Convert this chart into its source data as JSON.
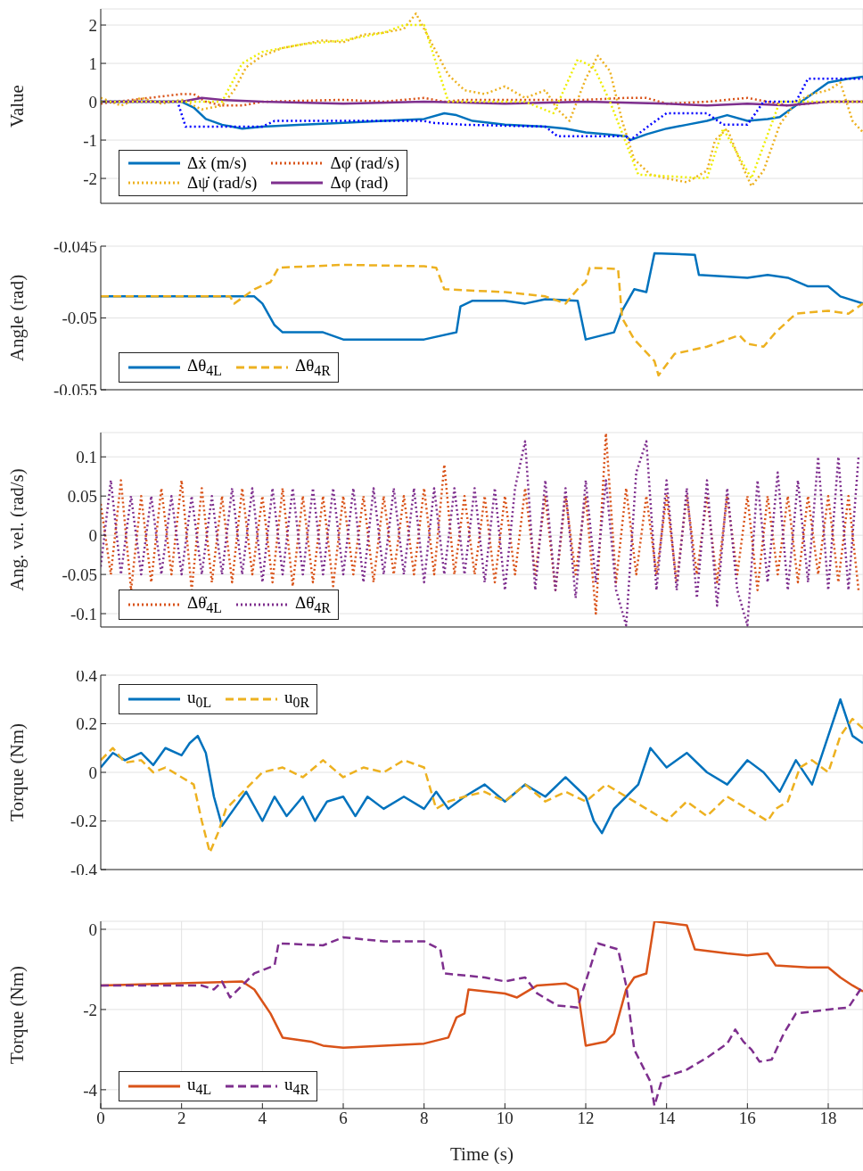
{
  "chart_data": [
    {
      "type": "line",
      "ylabel": "Value",
      "xlim": [
        0,
        18.86
      ],
      "xticks": [
        0,
        2,
        4,
        6,
        8,
        10,
        12,
        14,
        16,
        18
      ],
      "ylim": [
        -2.65,
        2.42
      ],
      "yticks": [
        -2,
        -1,
        0,
        1,
        2
      ],
      "grid": true,
      "legend": "bottom left",
      "tick_labels": "y",
      "series": [
        {
          "name": "Δẋ (m/s)",
          "color": "#0072bd",
          "line_style": "solid",
          "x": [
            0,
            1,
            2,
            2.3,
            2.6,
            3,
            3.5,
            4,
            5,
            6,
            7,
            8,
            8.5,
            8.8,
            9.2,
            10,
            11,
            11.5,
            12,
            12.5,
            13,
            13.1,
            13.5,
            14,
            14.5,
            15,
            15.5,
            16,
            16.5,
            16.8,
            17.2,
            17.6,
            18,
            18.5,
            18.86
          ],
          "values": [
            0,
            0,
            0,
            -0.15,
            -0.45,
            -0.6,
            -0.7,
            -0.65,
            -0.6,
            -0.55,
            -0.5,
            -0.45,
            -0.3,
            -0.35,
            -0.5,
            -0.6,
            -0.65,
            -0.7,
            -0.8,
            -0.85,
            -0.9,
            -1.0,
            -0.85,
            -0.7,
            -0.6,
            -0.5,
            -0.35,
            -0.5,
            -0.45,
            -0.4,
            -0.1,
            0.2,
            0.5,
            0.6,
            0.65
          ]
        },
        {
          "name": "Δφ̇ (rad/s)",
          "color": "#d95319",
          "line_style": "dotted",
          "x": [
            0,
            2,
            2.3,
            2.6,
            3,
            3.5,
            4,
            6,
            7,
            8,
            8.5,
            9,
            10,
            11,
            12,
            13,
            13.5,
            14,
            15,
            16,
            16.5,
            17,
            18,
            18.86
          ],
          "values": [
            -0.05,
            0.2,
            0.2,
            0,
            -0.1,
            -0.1,
            0,
            0.05,
            0,
            0.1,
            0,
            0.05,
            0.05,
            0.05,
            0.05,
            0.1,
            0.1,
            -0.05,
            0,
            0.1,
            0,
            -0.1,
            0,
            0
          ]
        },
        {
          "name": "Δψ̇ (rad/s)",
          "color": "#edb120",
          "line_style": "dotted",
          "x": [
            0,
            0.5,
            1,
            1.5,
            2,
            2.5,
            3,
            3.3,
            3.6,
            4,
            4.5,
            5,
            5.5,
            6,
            6.5,
            7,
            7.5,
            7.8,
            8,
            8.3,
            8.6,
            9,
            9.5,
            10,
            10.5,
            11,
            11.3,
            11.6,
            12,
            12.3,
            12.6,
            12.9,
            13.2,
            13.6,
            14,
            14.5,
            15,
            15.2,
            15.5,
            15.8,
            16.1,
            16.4,
            16.8,
            17.2,
            17.6,
            18,
            18.3,
            18.6,
            18.86
          ],
          "values": [
            0.1,
            -0.1,
            0.1,
            -0.05,
            0.05,
            -0.2,
            -0.1,
            0.3,
            0.9,
            1.2,
            1.4,
            1.5,
            1.6,
            1.55,
            1.75,
            1.8,
            1.9,
            2.3,
            1.9,
            1.3,
            0.7,
            0.3,
            0.2,
            0.4,
            0.1,
            0.3,
            -0.2,
            -0.5,
            0.6,
            1.2,
            0.8,
            -0.5,
            -1.5,
            -1.9,
            -2.0,
            -2.1,
            -1.8,
            -1.0,
            -0.7,
            -1.5,
            -2.2,
            -1.8,
            -0.6,
            0.0,
            0.2,
            0.3,
            0.5,
            -0.5,
            -0.8
          ]
        },
        {
          "name": "Δφ (rad)",
          "color": "#7e2f8e",
          "line_style": "solid",
          "x": [
            0,
            2,
            2.5,
            3,
            4,
            6,
            8,
            10,
            12,
            14,
            15,
            16,
            17,
            18,
            18.86
          ],
          "values": [
            0,
            0,
            0.1,
            0.05,
            0,
            -0.05,
            0,
            -0.05,
            0,
            -0.05,
            -0.1,
            -0.05,
            -0.1,
            0,
            0
          ]
        },
        {
          "color": "#0000ff",
          "line_style": "dotted",
          "x": [
            0,
            1.9,
            2.1,
            4,
            4.3,
            8,
            8.2,
            9,
            11,
            11.3,
            13,
            13.1,
            13.6,
            14,
            15,
            15.4,
            16,
            16.4,
            17.2,
            17.5,
            18.86
          ],
          "values": [
            0,
            0,
            -0.65,
            -0.65,
            -0.5,
            -0.5,
            -0.55,
            -0.6,
            -0.65,
            -0.9,
            -0.9,
            -1.0,
            -0.6,
            -0.3,
            -0.3,
            -0.6,
            -0.6,
            0,
            0,
            0.6,
            0.6
          ]
        },
        {
          "color": "#eeee00",
          "line_style": "dotted",
          "x": [
            0,
            3,
            3.5,
            4,
            5,
            6,
            7,
            7.5,
            8,
            8.3,
            8.6,
            10.5,
            11.2,
            11.8,
            12.2,
            12.6,
            13.3,
            15,
            15.4,
            16.1,
            16.8,
            18.86
          ],
          "values": [
            0,
            0,
            1.0,
            1.3,
            1.5,
            1.6,
            1.8,
            2.0,
            2.0,
            1.0,
            0,
            0,
            -0.3,
            1.1,
            0.9,
            0,
            -1.9,
            -2.0,
            -0.7,
            -2.0,
            0,
            0
          ]
        }
      ]
    },
    {
      "type": "line",
      "ylabel": "Angle (rad)",
      "xlim": [
        0,
        18.86
      ],
      "xticks": [
        0,
        2,
        4,
        6,
        8,
        10,
        12,
        14,
        16,
        18
      ],
      "ylim": [
        -0.055,
        -0.045
      ],
      "yticks": [
        -0.055,
        -0.05,
        -0.045
      ],
      "grid": true,
      "legend": "bottom left",
      "tick_labels": "y",
      "series": [
        {
          "name": "Δθ$_{4L}$",
          "color": "#0072bd",
          "line_style": "solid",
          "x": [
            0,
            3.8,
            4,
            4.3,
            4.5,
            5.5,
            6,
            8,
            8.8,
            8.9,
            9.2,
            10,
            10.5,
            11,
            11.8,
            12,
            12.7,
            12.9,
            13.2,
            13.5,
            13.7,
            14.7,
            14.8,
            16,
            16.5,
            17,
            17.5,
            18,
            18.3,
            18.86
          ],
          "values": [
            -0.0485,
            -0.0485,
            -0.049,
            -0.0505,
            -0.051,
            -0.051,
            -0.0515,
            -0.0515,
            -0.051,
            -0.0492,
            -0.0488,
            -0.0488,
            -0.049,
            -0.0487,
            -0.0488,
            -0.0515,
            -0.051,
            -0.0495,
            -0.048,
            -0.0482,
            -0.0455,
            -0.0456,
            -0.047,
            -0.0472,
            -0.047,
            -0.0472,
            -0.0478,
            -0.0478,
            -0.0485,
            -0.049
          ]
        },
        {
          "name": "Δθ$_{4R}$",
          "color": "#edb120",
          "line_style": "dashed",
          "x": [
            0,
            3.2,
            3.3,
            3.8,
            4.2,
            4.4,
            6,
            8,
            8.3,
            8.5,
            10,
            11,
            11.5,
            11.8,
            12,
            12.1,
            12.8,
            12.9,
            13.2,
            13.7,
            13.8,
            14.2,
            15,
            15.8,
            16,
            16.4,
            16.7,
            17.2,
            18,
            18.5,
            18.86
          ],
          "values": [
            -0.0485,
            -0.0485,
            -0.049,
            -0.048,
            -0.0475,
            -0.0465,
            -0.0463,
            -0.0464,
            -0.0465,
            -0.048,
            -0.0482,
            -0.0485,
            -0.049,
            -0.048,
            -0.0475,
            -0.0465,
            -0.0466,
            -0.05,
            -0.0515,
            -0.053,
            -0.054,
            -0.0525,
            -0.052,
            -0.0512,
            -0.0518,
            -0.052,
            -0.051,
            -0.0497,
            -0.0495,
            -0.0497,
            -0.049
          ]
        }
      ]
    },
    {
      "type": "line",
      "ylabel": "Ang. vel. (rad/s)",
      "xlim": [
        0,
        18.86
      ],
      "xticks": [
        0,
        2,
        4,
        6,
        8,
        10,
        12,
        14,
        16,
        18
      ],
      "ylim": [
        -0.117,
        0.131
      ],
      "yticks": [
        -0.1,
        -0.05,
        0,
        0.05,
        0.1
      ],
      "grid": true,
      "legend": "bottom left",
      "tick_labels": "y",
      "x": [
        0,
        0.25,
        0.5,
        0.75,
        1,
        1.25,
        1.5,
        1.75,
        2,
        2.25,
        2.5,
        2.75,
        3,
        3.25,
        3.5,
        3.75,
        4,
        4.25,
        4.5,
        4.75,
        5,
        5.25,
        5.5,
        5.75,
        6,
        6.25,
        6.5,
        6.75,
        7,
        7.25,
        7.5,
        7.75,
        8,
        8.25,
        8.5,
        8.75,
        9,
        9.25,
        9.5,
        9.75,
        10,
        10.25,
        10.5,
        10.75,
        11,
        11.25,
        11.5,
        11.75,
        12,
        12.25,
        12.5,
        12.75,
        13,
        13.25,
        13.5,
        13.75,
        14,
        14.25,
        14.5,
        14.75,
        15,
        15.25,
        15.5,
        15.75,
        16,
        16.25,
        16.5,
        16.75,
        17,
        17.25,
        17.5,
        17.75,
        18,
        18.25,
        18.5,
        18.75
      ],
      "series": [
        {
          "name": "Δθ̇$_{4L}$",
          "color": "#d95319",
          "line_style": "dotted",
          "values": [
            0.04,
            -0.05,
            0.07,
            -0.07,
            0.05,
            -0.06,
            0.06,
            -0.05,
            0.07,
            -0.07,
            0.06,
            -0.06,
            0.05,
            -0.06,
            0.06,
            -0.05,
            0.05,
            -0.06,
            0.06,
            -0.065,
            0.05,
            -0.06,
            0.05,
            -0.065,
            0.05,
            -0.05,
            0.05,
            -0.06,
            0.05,
            -0.05,
            0.05,
            -0.05,
            0.06,
            -0.05,
            0.09,
            -0.05,
            0.05,
            -0.05,
            0.05,
            -0.06,
            0.05,
            -0.05,
            0.06,
            -0.05,
            0.05,
            -0.07,
            0.05,
            -0.05,
            0.05,
            -0.1,
            0.13,
            -0.06,
            0.06,
            -0.05,
            0.05,
            -0.05,
            0.05,
            -0.06,
            0.05,
            -0.05,
            0.05,
            -0.06,
            0.05,
            -0.05,
            0.05,
            -0.07,
            0.05,
            -0.05,
            0.05,
            -0.06,
            0.05,
            -0.05,
            0.05,
            -0.06,
            0.05,
            -0.07
          ]
        },
        {
          "name": "Δθ̇$_{4R}$",
          "color": "#7e2f8e",
          "line_style": "dotted",
          "values": [
            -0.04,
            0.07,
            -0.05,
            0.05,
            -0.05,
            0.05,
            -0.05,
            0.05,
            -0.05,
            0.05,
            -0.05,
            0.05,
            -0.05,
            0.06,
            -0.05,
            0.06,
            -0.06,
            0.06,
            -0.05,
            0.06,
            -0.05,
            0.06,
            -0.05,
            0.06,
            -0.05,
            0.06,
            -0.06,
            0.06,
            -0.05,
            0.06,
            -0.05,
            0.06,
            -0.06,
            0.06,
            -0.05,
            0.06,
            -0.05,
            0.06,
            -0.06,
            0.06,
            -0.07,
            0.06,
            0.12,
            -0.07,
            0.07,
            -0.07,
            0.06,
            -0.08,
            0.07,
            -0.06,
            0.07,
            -0.07,
            -0.115,
            0.08,
            0.12,
            -0.07,
            0.07,
            -0.07,
            0.06,
            -0.08,
            0.07,
            -0.09,
            0.06,
            -0.07,
            -0.115,
            0.07,
            -0.06,
            0.08,
            -0.07,
            0.07,
            -0.06,
            0.1,
            -0.07,
            0.1,
            -0.07,
            0.1
          ]
        }
      ]
    },
    {
      "type": "line",
      "ylabel": "Torque (Nm)",
      "xlim": [
        0,
        18.86
      ],
      "xticks": [
        0,
        2,
        4,
        6,
        8,
        10,
        12,
        14,
        16,
        18
      ],
      "ylim": [
        -0.4,
        0.4
      ],
      "yticks": [
        -0.4,
        -0.2,
        0,
        0.2,
        0.4
      ],
      "grid": true,
      "legend": "top left",
      "tick_labels": "y",
      "series": [
        {
          "name": "u$_{0L}$",
          "color": "#0072bd",
          "line_style": "solid",
          "x": [
            0,
            0.3,
            0.6,
            1,
            1.3,
            1.6,
            2,
            2.2,
            2.4,
            2.6,
            2.8,
            3,
            3.3,
            3.6,
            4,
            4.3,
            4.6,
            5,
            5.3,
            5.6,
            6,
            6.3,
            6.6,
            7,
            7.5,
            8,
            8.3,
            8.6,
            9,
            9.5,
            10,
            10.5,
            11,
            11.5,
            12,
            12.2,
            12.4,
            12.7,
            13,
            13.3,
            13.6,
            14,
            14.5,
            15,
            15.5,
            16,
            16.4,
            16.8,
            17.2,
            17.6,
            18,
            18.3,
            18.6,
            18.86
          ],
          "values": [
            0.02,
            0.08,
            0.05,
            0.08,
            0.03,
            0.1,
            0.07,
            0.12,
            0.15,
            0.08,
            -0.1,
            -0.22,
            -0.15,
            -0.08,
            -0.2,
            -0.1,
            -0.18,
            -0.1,
            -0.2,
            -0.12,
            -0.1,
            -0.18,
            -0.1,
            -0.15,
            -0.1,
            -0.15,
            -0.08,
            -0.15,
            -0.1,
            -0.05,
            -0.12,
            -0.05,
            -0.1,
            -0.02,
            -0.1,
            -0.2,
            -0.25,
            -0.15,
            -0.1,
            -0.05,
            0.1,
            0.02,
            0.08,
            0.0,
            -0.05,
            0.05,
            0.0,
            -0.08,
            0.05,
            -0.05,
            0.15,
            0.3,
            0.15,
            0.12
          ]
        },
        {
          "name": "u$_{0R}$",
          "color": "#edb120",
          "line_style": "dashed",
          "x": [
            0,
            0.3,
            0.6,
            1,
            1.3,
            1.6,
            2,
            2.3,
            2.5,
            2.7,
            2.9,
            3.1,
            3.4,
            3.7,
            4,
            4.5,
            5,
            5.5,
            6,
            6.5,
            7,
            7.5,
            8,
            8.3,
            8.6,
            9,
            9.5,
            10,
            10.5,
            11,
            11.5,
            12,
            12.5,
            13,
            13.5,
            14,
            14.5,
            15,
            15.5,
            16,
            16.5,
            16.7,
            17,
            17.3,
            17.6,
            18,
            18.3,
            18.6,
            18.86
          ],
          "values": [
            0.05,
            0.1,
            0.04,
            0.05,
            0.0,
            0.02,
            -0.02,
            -0.05,
            -0.2,
            -0.33,
            -0.25,
            -0.15,
            -0.1,
            -0.05,
            0.0,
            0.02,
            -0.02,
            0.05,
            -0.02,
            0.02,
            0.0,
            0.05,
            0.02,
            -0.15,
            -0.12,
            -0.1,
            -0.08,
            -0.12,
            -0.05,
            -0.12,
            -0.08,
            -0.12,
            -0.05,
            -0.1,
            -0.15,
            -0.2,
            -0.12,
            -0.18,
            -0.1,
            -0.15,
            -0.2,
            -0.15,
            -0.12,
            0.02,
            0.05,
            0.0,
            0.15,
            0.22,
            0.18
          ]
        }
      ]
    },
    {
      "type": "line",
      "ylabel": "Torque (Nm)",
      "xlabel": "Time (s)",
      "xlim": [
        0,
        18.86
      ],
      "xticks": [
        0,
        2,
        4,
        6,
        8,
        10,
        12,
        14,
        16,
        18
      ],
      "ylim": [
        -4.47,
        0.2
      ],
      "yticks": [
        -4,
        -2,
        0
      ],
      "grid": true,
      "legend": "bottom left",
      "series": [
        {
          "name": "u$_{4L}$",
          "color": "#d95319",
          "line_style": "solid",
          "x": [
            0,
            3.5,
            3.8,
            4.0,
            4.2,
            4.5,
            5.2,
            5.5,
            6,
            7,
            8,
            8.6,
            8.8,
            9.0,
            9.1,
            10,
            10.3,
            10.8,
            11.5,
            11.8,
            12,
            12.5,
            12.7,
            13,
            13.2,
            13.5,
            13.7,
            14.5,
            14.7,
            15.5,
            16,
            16.5,
            16.7,
            17.5,
            18,
            18.3,
            18.6,
            18.86
          ],
          "values": [
            -1.4,
            -1.3,
            -1.5,
            -1.8,
            -2.1,
            -2.7,
            -2.8,
            -2.9,
            -2.95,
            -2.9,
            -2.85,
            -2.7,
            -2.2,
            -2.1,
            -1.5,
            -1.6,
            -1.7,
            -1.4,
            -1.35,
            -1.5,
            -2.9,
            -2.8,
            -2.6,
            -1.5,
            -1.2,
            -1.1,
            0.2,
            0.1,
            -0.5,
            -0.6,
            -0.65,
            -0.6,
            -0.9,
            -0.95,
            -0.95,
            -1.2,
            -1.4,
            -1.55
          ]
        },
        {
          "name": "u$_{4R}$",
          "color": "#7e2f8e",
          "line_style": "dashed",
          "x": [
            0,
            2.5,
            2.8,
            3.0,
            3.2,
            3.5,
            3.8,
            4.3,
            4.4,
            5.5,
            6,
            7,
            8,
            8.4,
            8.5,
            9.5,
            10,
            10.5,
            10.8,
            11.3,
            11.8,
            12,
            12.3,
            12.8,
            13,
            13.2,
            13.4,
            13.6,
            13.7,
            13.9,
            14.5,
            15,
            15.5,
            15.7,
            15.9,
            16.1,
            16.3,
            16.6,
            16.9,
            17.2,
            18,
            18.5,
            18.86
          ],
          "values": [
            -1.4,
            -1.4,
            -1.5,
            -1.3,
            -1.7,
            -1.4,
            -1.1,
            -0.9,
            -0.35,
            -0.4,
            -0.2,
            -0.3,
            -0.3,
            -0.5,
            -1.1,
            -1.2,
            -1.3,
            -1.2,
            -1.6,
            -1.9,
            -1.95,
            -1.3,
            -0.35,
            -0.5,
            -1.4,
            -3.0,
            -3.4,
            -3.8,
            -4.4,
            -3.7,
            -3.5,
            -3.2,
            -2.85,
            -2.5,
            -2.8,
            -3.0,
            -3.3,
            -3.25,
            -2.6,
            -2.1,
            -2.0,
            -1.95,
            -1.4
          ]
        }
      ]
    }
  ]
}
